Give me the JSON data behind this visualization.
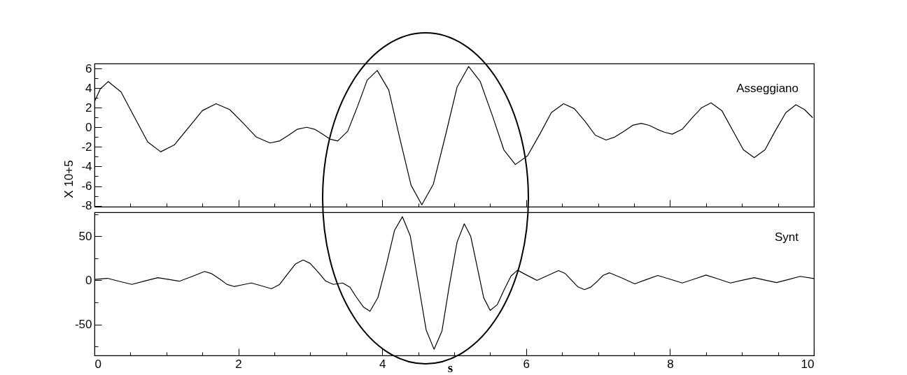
{
  "chart_data": [
    {
      "type": "line",
      "ylabel": "X 10+5",
      "tick_labels": "y",
      "xlim": [
        0,
        10
      ],
      "xticks": [
        0,
        {
          "value": 0.5,
          "label": null
        },
        {
          "value": 1,
          "label": null
        },
        {
          "value": 1.5,
          "label": null
        },
        2,
        {
          "value": 2.5,
          "label": null
        },
        {
          "value": 3,
          "label": null
        },
        {
          "value": 3.5,
          "label": null
        },
        4,
        {
          "value": 4.5,
          "label": null
        },
        {
          "value": 5,
          "label": null
        },
        {
          "value": 5.5,
          "label": null
        },
        6,
        {
          "value": 6.5,
          "label": null
        },
        {
          "value": 7,
          "label": null
        },
        {
          "value": 7.5,
          "label": null
        },
        8,
        {
          "value": 8.5,
          "label": null
        },
        {
          "value": 9,
          "label": null
        },
        {
          "value": 9.5,
          "label": null
        },
        10
      ],
      "ylim": [
        -8.1,
        6.5
      ],
      "yticks": [
        6,
        {
          "value": 5,
          "label": null
        },
        4,
        {
          "value": 3,
          "label": null
        },
        2,
        {
          "value": 1,
          "label": null
        },
        0,
        {
          "value": -1,
          "label": null
        },
        -2,
        {
          "value": -3,
          "label": null
        },
        -4,
        {
          "value": -5,
          "label": null
        },
        -6,
        {
          "value": -7,
          "label": null
        },
        -8
      ],
      "series": [
        {
          "name": "Asseggiano",
          "color": "#000000",
          "line_style": "solid",
          "marker": "none",
          "x": [
            0,
            0.08,
            0.19,
            0.37,
            0.55,
            0.74,
            0.92,
            1.11,
            1.31,
            1.5,
            1.69,
            1.88,
            2.07,
            2.25,
            2.44,
            2.57,
            2.7,
            2.82,
            2.95,
            3.06,
            3.17,
            3.27,
            3.38,
            3.52,
            3.66,
            3.79,
            3.93,
            4.09,
            4.24,
            4.4,
            4.55,
            4.71,
            4.88,
            5.04,
            5.2,
            5.36,
            5.53,
            5.69,
            5.85,
            6.02,
            6.19,
            6.35,
            6.52,
            6.67,
            6.82,
            6.96,
            7.11,
            7.23,
            7.36,
            7.48,
            7.6,
            7.71,
            7.82,
            7.92,
            8.03,
            8.17,
            8.3,
            8.44,
            8.57,
            8.72,
            8.87,
            9.02,
            9.17,
            9.32,
            9.46,
            9.61,
            9.75,
            9.87,
            9.98
          ],
          "values": [
            2.6,
            3.9,
            4.66,
            3.6,
            1.1,
            -1.5,
            -2.5,
            -1.8,
            0.0,
            1.7,
            2.4,
            1.8,
            0.4,
            -1.0,
            -1.6,
            -1.4,
            -0.8,
            -0.2,
            0.0,
            -0.2,
            -0.7,
            -1.2,
            -1.4,
            -0.4,
            2.2,
            4.8,
            5.8,
            3.8,
            -1.0,
            -5.9,
            -7.9,
            -5.8,
            -0.8,
            4.1,
            6.2,
            4.7,
            1.2,
            -2.3,
            -3.8,
            -2.9,
            -0.7,
            1.5,
            2.4,
            1.9,
            0.6,
            -0.8,
            -1.3,
            -1.0,
            -0.4,
            0.2,
            0.4,
            0.2,
            -0.2,
            -0.5,
            -0.7,
            -0.2,
            0.9,
            2.0,
            2.5,
            1.7,
            -0.3,
            -2.3,
            -3.1,
            -2.3,
            -0.4,
            1.5,
            2.3,
            1.8,
            1.0
          ]
        }
      ]
    },
    {
      "type": "line",
      "xlabel": "s",
      "xlim": [
        0,
        10
      ],
      "xticks": [
        0,
        {
          "value": 0.5,
          "label": null
        },
        {
          "value": 1,
          "label": null
        },
        {
          "value": 1.5,
          "label": null
        },
        2,
        {
          "value": 2.5,
          "label": null
        },
        {
          "value": 3,
          "label": null
        },
        {
          "value": 3.5,
          "label": null
        },
        4,
        {
          "value": 4.5,
          "label": null
        },
        {
          "value": 5,
          "label": null
        },
        {
          "value": 5.5,
          "label": null
        },
        6,
        {
          "value": 6.5,
          "label": null
        },
        {
          "value": 7,
          "label": null
        },
        {
          "value": 7.5,
          "label": null
        },
        8,
        {
          "value": 8.5,
          "label": null
        },
        {
          "value": 9,
          "label": null
        },
        {
          "value": 9.5,
          "label": null
        },
        10
      ],
      "ylim": [
        -85,
        77
      ],
      "yticks": [
        {
          "value": 75,
          "label": null
        },
        50,
        {
          "value": 25,
          "label": null
        },
        0,
        {
          "value": -25,
          "label": null
        },
        -50,
        {
          "value": -75,
          "label": null
        }
      ],
      "series": [
        {
          "name": "Synt",
          "color": "#000000",
          "line_style": "solid",
          "marker": "none",
          "x": [
            0,
            0.18,
            0.35,
            0.52,
            0.7,
            0.88,
            1.03,
            1.18,
            1.36,
            1.53,
            1.63,
            1.74,
            1.84,
            1.94,
            2.06,
            2.18,
            2.32,
            2.46,
            2.57,
            2.68,
            2.79,
            2.9,
            3.0,
            3.11,
            3.21,
            3.32,
            3.45,
            3.55,
            3.64,
            3.74,
            3.83,
            3.94,
            4.06,
            4.17,
            4.28,
            4.39,
            4.5,
            4.61,
            4.72,
            4.83,
            4.93,
            5.04,
            5.14,
            5.23,
            5.32,
            5.41,
            5.5,
            5.6,
            5.69,
            5.79,
            5.88,
            6.01,
            6.15,
            6.3,
            6.45,
            6.54,
            6.63,
            6.72,
            6.81,
            6.9,
            6.99,
            7.07,
            7.16,
            7.34,
            7.51,
            7.67,
            7.83,
            8.0,
            8.17,
            8.34,
            8.5,
            8.67,
            8.84,
            9.0,
            9.17,
            9.32,
            9.48,
            9.65,
            9.81,
            10
          ],
          "values": [
            1,
            2.3,
            -1.2,
            -4.6,
            -0.8,
            3,
            1,
            -1,
            4.5,
            10,
            7.5,
            1.5,
            -4.5,
            -7,
            -5,
            -3,
            -6.2,
            -9.5,
            -4.8,
            6.8,
            18.3,
            23,
            19,
            9.2,
            -0.6,
            -4.6,
            -3,
            -7.7,
            -19,
            -30.3,
            -35,
            -19.4,
            18.5,
            56.4,
            72,
            50.1,
            -3,
            -56.1,
            -78,
            -57.3,
            -7,
            43.3,
            64,
            49.7,
            15,
            -19.7,
            -34,
            -27.4,
            -11.3,
            4.9,
            11.5,
            5.8,
            0,
            5.5,
            11,
            7.9,
            0.3,
            -7.4,
            -10.5,
            -7.7,
            -1,
            5.7,
            8.5,
            2.3,
            -4,
            0.8,
            5.5,
            1.3,
            -3,
            1.5,
            6,
            1.5,
            -3,
            0,
            3,
            0.3,
            -2.5,
            1,
            4.5,
            2
          ]
        }
      ]
    }
  ]
}
